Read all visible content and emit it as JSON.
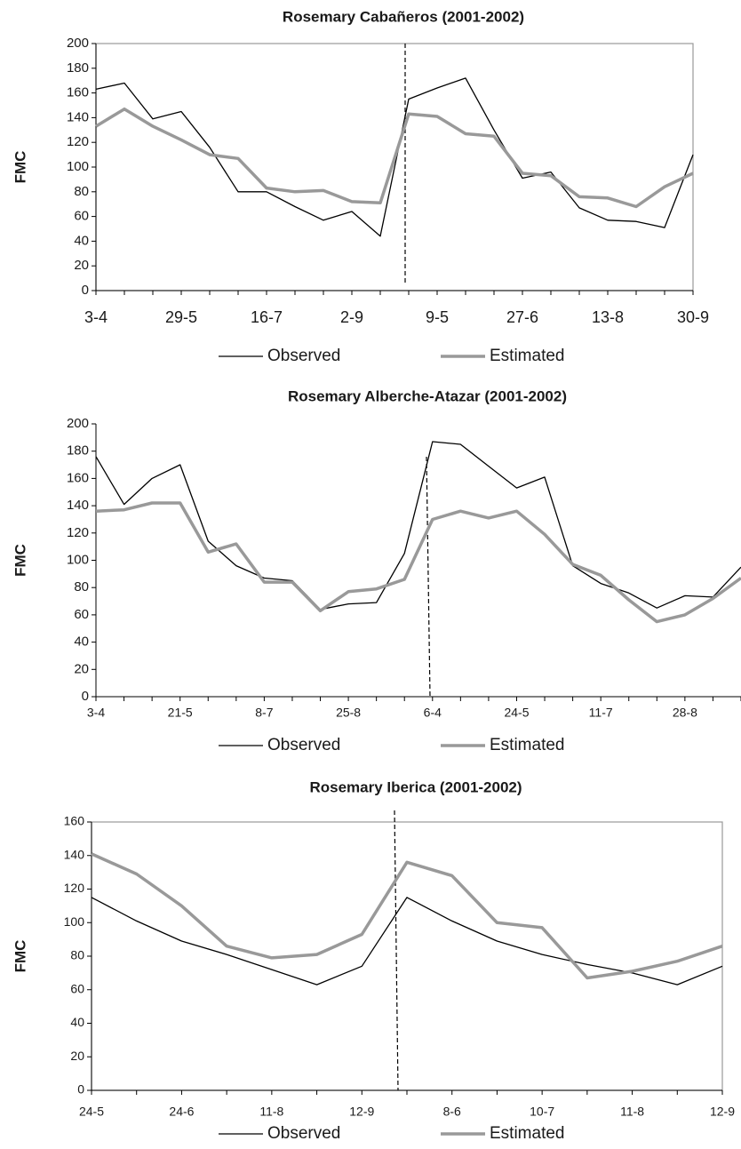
{
  "chart_data": [
    {
      "type": "line",
      "title": "Rosemary Cabañeros (2001-2002)",
      "y_label": "FMC",
      "categories": [
        "3-4",
        null,
        null,
        "29-5",
        null,
        null,
        "16-7",
        null,
        null,
        "2-9",
        null,
        null,
        "9-5",
        null,
        null,
        "27-6",
        null,
        null,
        "13-8",
        null,
        null,
        "30-9"
      ],
      "series": [
        {
          "name": "Observed",
          "color": "#000000",
          "values": [
            163,
            168,
            139,
            145,
            116,
            80,
            80,
            68,
            57,
            64,
            44,
            155,
            164,
            172,
            130,
            91,
            96,
            67,
            57,
            56,
            51,
            110
          ]
        },
        {
          "name": "Estimated",
          "color": "#999999",
          "values": [
            133,
            147,
            133,
            122,
            110,
            107,
            83,
            80,
            81,
            72,
            71,
            143,
            141,
            127,
            125,
            95,
            93,
            76,
            75,
            68,
            84,
            95
          ]
        }
      ],
      "ylim": [
        0,
        200
      ],
      "yticks": [
        0,
        20,
        40,
        60,
        80,
        100,
        120,
        140,
        160,
        180,
        200
      ]
    },
    {
      "type": "line",
      "title": "Rosemary Alberche-Atazar (2001-2002)",
      "y_label": "FMC",
      "categories": [
        "3-4",
        null,
        null,
        "21-5",
        null,
        null,
        "8-7",
        null,
        null,
        "25-8",
        null,
        null,
        "6-4",
        null,
        null,
        "24-5",
        null,
        null,
        "11-7",
        null,
        null,
        "28-8",
        null,
        null
      ],
      "series": [
        {
          "name": "Observed",
          "color": "#000000",
          "values": [
            176,
            141,
            160,
            170,
            114,
            96,
            87,
            85,
            64,
            68,
            69,
            105,
            187,
            185,
            169,
            153,
            161,
            96,
            83,
            76,
            65,
            74,
            73,
            95
          ]
        },
        {
          "name": "Estimated",
          "color": "#999999",
          "values": [
            136,
            137,
            142,
            142,
            106,
            112,
            84,
            84,
            63,
            77,
            79,
            86,
            130,
            136,
            131,
            136,
            119,
            97,
            89,
            71,
            55,
            60,
            72,
            87
          ]
        }
      ],
      "ylim": [
        0,
        200
      ],
      "yticks": [
        0,
        20,
        40,
        60,
        80,
        100,
        120,
        140,
        160,
        180,
        200
      ]
    },
    {
      "type": "line",
      "title": "Rosemary Iberica (2001-2002)",
      "y_label": "FMC",
      "categories": [
        "24-5",
        null,
        "24-6",
        null,
        "11-8",
        null,
        "12-9",
        null,
        "8-6",
        null,
        "10-7",
        null,
        "11-8",
        null,
        "12-9"
      ],
      "series": [
        {
          "name": "Observed",
          "color": "#000000",
          "values": [
            115,
            101,
            89,
            81,
            72,
            63,
            74,
            115,
            101,
            89,
            81,
            75,
            70,
            63,
            74
          ]
        },
        {
          "name": "Estimated",
          "color": "#999999",
          "values": [
            141,
            129,
            110,
            86,
            79,
            81,
            93,
            136,
            128,
            100,
            97,
            67,
            71,
            77,
            86
          ]
        }
      ],
      "ylim": [
        0,
        160
      ],
      "yticks": [
        0,
        20,
        40,
        60,
        80,
        100,
        120,
        140,
        160
      ]
    }
  ]
}
